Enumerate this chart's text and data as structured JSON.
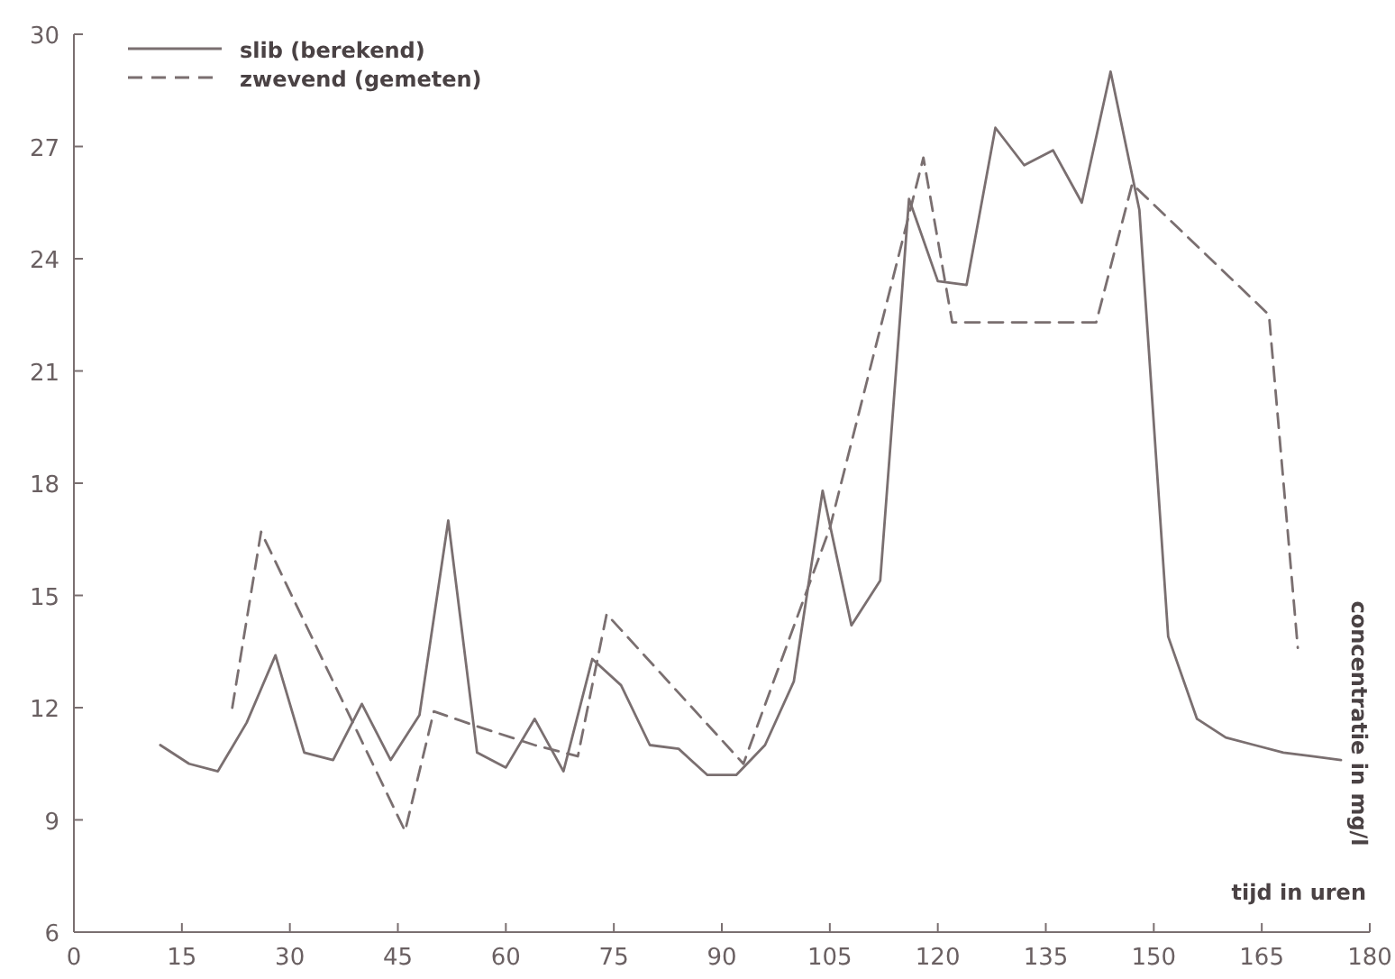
{
  "chart_data": {
    "type": "line",
    "xlabel": "tijd in uren",
    "ylabel": "concentratie in mg/l",
    "xlim": [
      0,
      180
    ],
    "ylim": [
      6,
      30
    ],
    "xticks": [
      0,
      15,
      30,
      45,
      60,
      75,
      90,
      105,
      120,
      135,
      150,
      165,
      180
    ],
    "yticks": [
      6,
      9,
      12,
      15,
      18,
      21,
      24,
      27,
      30
    ],
    "grid": false,
    "legend": "top left",
    "marker": "none",
    "series": [
      {
        "name": "slib (berekend)",
        "color": "#7a6f70",
        "line_style": "solid",
        "x": [
          12,
          16,
          20,
          24,
          28,
          32,
          36,
          40,
          44,
          48,
          52,
          56,
          60,
          64,
          68,
          72,
          76,
          80,
          84,
          88,
          92,
          96,
          100,
          104,
          108,
          112,
          116,
          120,
          124,
          128,
          132,
          136,
          140,
          144,
          148,
          152,
          156,
          160,
          164,
          168,
          172,
          176
        ],
        "values": [
          11.0,
          10.5,
          10.3,
          11.6,
          13.4,
          10.8,
          10.6,
          12.1,
          10.6,
          11.8,
          17.0,
          10.8,
          10.4,
          11.7,
          10.3,
          13.3,
          12.6,
          11.0,
          10.9,
          10.2,
          10.2,
          11.0,
          12.7,
          17.8,
          14.2,
          15.4,
          25.6,
          23.4,
          23.3,
          27.5,
          26.5,
          26.9,
          25.5,
          29.0,
          25.3,
          13.9,
          11.7,
          11.2,
          11.0,
          10.8,
          10.7,
          10.6
        ]
      },
      {
        "name": "zwevend (gemeten)",
        "color": "#7a6f70",
        "line_style": "dashed",
        "x": [
          22,
          26,
          46,
          50,
          56,
          64,
          70,
          74,
          93,
          105,
          118,
          122,
          142,
          147,
          166,
          170
        ],
        "values": [
          12.0,
          16.7,
          8.7,
          11.9,
          11.5,
          11.0,
          10.7,
          14.5,
          10.5,
          16.8,
          26.7,
          22.3,
          22.3,
          26.0,
          22.5,
          13.6
        ]
      }
    ]
  }
}
